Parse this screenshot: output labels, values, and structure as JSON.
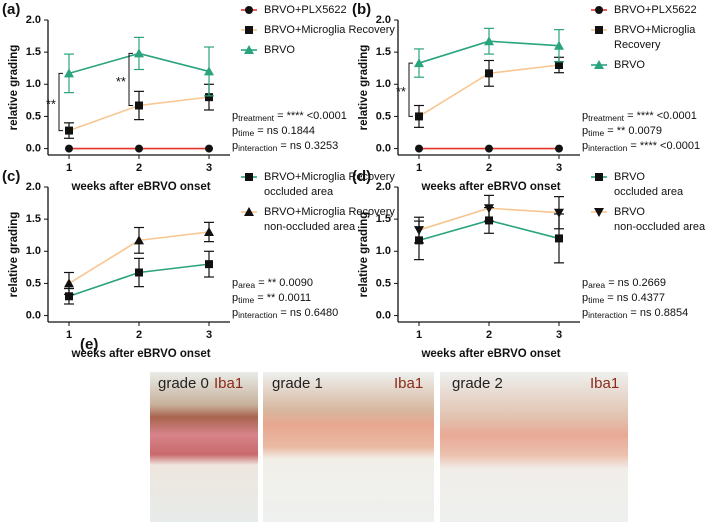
{
  "chart_data": [
    {
      "type": "line",
      "panel_label": "(a)",
      "ylabel": "relative grading",
      "xlabel": "weeks after eBRVO onset",
      "x": [
        1,
        2,
        3
      ],
      "xlim": [
        0.7,
        3.3
      ],
      "xticks": [
        1,
        2,
        3
      ],
      "ylim": [
        -0.1,
        2.0
      ],
      "yticks": [
        {
          "value": 0,
          "label": "0.0"
        },
        0.5,
        {
          "value": 1,
          "label": "1.0"
        },
        1.5,
        {
          "value": 2,
          "label": "2.0"
        }
      ],
      "series": [
        {
          "name": "BRVO+PLX5622",
          "color": "#e5352b",
          "marker": "circle",
          "marker_color": "#111111",
          "values": [
            0,
            0,
            0
          ],
          "errors": [
            0,
            0,
            0
          ]
        },
        {
          "name": "BRVO+Microglia Recovery",
          "color": "#f8c690",
          "marker": "square",
          "marker_color": "#111111",
          "values": [
            0.28,
            0.67,
            0.8
          ],
          "errors": [
            0.12,
            0.22,
            0.2
          ]
        },
        {
          "name": "BRVO",
          "color": "#2aa37f",
          "marker": "triangle-up",
          "marker_color": "#2aa37f",
          "values": [
            1.17,
            1.48,
            1.2
          ],
          "errors": [
            0.3,
            0.25,
            0.38
          ]
        }
      ],
      "significance": [
        {
          "x": 1,
          "label": "**"
        },
        {
          "x": 2,
          "label": "**"
        }
      ],
      "stats": [
        {
          "symbol": "p",
          "subscript": "treatment",
          "text": " = **** <0.0001"
        },
        {
          "symbol": "p",
          "subscript": "time",
          "text": " = ns 0.1844"
        },
        {
          "symbol": "p",
          "subscript": "interaction",
          "text": " = ns 0.3253"
        }
      ]
    },
    {
      "type": "line",
      "panel_label": "(b)",
      "ylabel": "relative grading",
      "xlabel": "weeks after eBRVO onset",
      "x": [
        1,
        2,
        3
      ],
      "xlim": [
        0.7,
        3.3
      ],
      "xticks": [
        1,
        2,
        3
      ],
      "ylim": [
        -0.1,
        2.0
      ],
      "yticks": [
        {
          "value": 0,
          "label": "0.0"
        },
        0.5,
        {
          "value": 1,
          "label": "1.0"
        },
        1.5,
        {
          "value": 2,
          "label": "2.0"
        }
      ],
      "series": [
        {
          "name": "BRVO+PLX5622",
          "color": "#e5352b",
          "marker": "circle",
          "marker_color": "#111111",
          "values": [
            0,
            0,
            0
          ],
          "errors": [
            0,
            0,
            0
          ]
        },
        {
          "name": "BRVO+Microglia Recovery",
          "color": "#f8c690",
          "marker": "square",
          "marker_color": "#111111",
          "values": [
            0.5,
            1.17,
            1.3
          ],
          "errors": [
            0.17,
            0.2,
            0.12
          ]
        },
        {
          "name": "BRVO",
          "color": "#2aa37f",
          "marker": "triangle-up",
          "marker_color": "#2aa37f",
          "values": [
            1.33,
            1.67,
            1.6
          ],
          "errors": [
            0.22,
            0.2,
            0.25
          ]
        }
      ],
      "significance": [
        {
          "x": 1,
          "label": "**"
        }
      ],
      "stats": [
        {
          "symbol": "p",
          "subscript": "treatment",
          "text": " = **** <0.0001"
        },
        {
          "symbol": "p",
          "subscript": "time",
          "text": " = ** 0.0079"
        },
        {
          "symbol": "p",
          "subscript": "interaction",
          "text": " = **** <0.0001"
        }
      ]
    },
    {
      "type": "line",
      "panel_label": "(c)",
      "ylabel": "relative grading",
      "xlabel": "weeks after eBRVO onset",
      "x": [
        1,
        2,
        3
      ],
      "xlim": [
        0.7,
        3.3
      ],
      "xticks": [
        1,
        2,
        3
      ],
      "ylim": [
        -0.1,
        2.0
      ],
      "yticks": [
        {
          "value": 0,
          "label": "0.0"
        },
        0.5,
        {
          "value": 1,
          "label": "1.0"
        },
        1.5,
        {
          "value": 2,
          "label": "2.0"
        }
      ],
      "series": [
        {
          "name": "BRVO+Microglia Recovery\noccluded area",
          "color": "#2aa37f",
          "marker": "square",
          "marker_color": "#111111",
          "values": [
            0.3,
            0.67,
            0.8
          ],
          "errors": [
            0.12,
            0.22,
            0.2
          ]
        },
        {
          "name": "BRVO+Microglia Recovery\nnon-occluded area",
          "color": "#f8c690",
          "marker": "triangle-up",
          "marker_color": "#111111",
          "values": [
            0.5,
            1.17,
            1.3
          ],
          "errors": [
            0.17,
            0.2,
            0.15
          ]
        }
      ],
      "stats": [
        {
          "symbol": "p",
          "subscript": "area",
          "text": " = ** 0.0090"
        },
        {
          "symbol": "p",
          "subscript": "time",
          "text": " = ** 0.0011"
        },
        {
          "symbol": "p",
          "subscript": "interaction",
          "text": " = ns 0.6480"
        }
      ]
    },
    {
      "type": "line",
      "panel_label": "(d)",
      "ylabel": "relative grading",
      "xlabel": "weeks after eBRVO onset",
      "x": [
        1,
        2,
        3
      ],
      "xlim": [
        0.7,
        3.3
      ],
      "xticks": [
        1,
        2,
        3
      ],
      "ylim": [
        -0.1,
        2.0
      ],
      "yticks": [
        {
          "value": 0,
          "label": "0.0"
        },
        0.5,
        {
          "value": 1,
          "label": "1.0"
        },
        1.5,
        {
          "value": 2,
          "label": "2.0"
        }
      ],
      "series": [
        {
          "name": "BRVO\noccluded area",
          "color": "#2aa37f",
          "marker": "square",
          "marker_color": "#111111",
          "values": [
            1.17,
            1.48,
            1.2
          ],
          "errors": [
            0.3,
            0.2,
            0.38
          ]
        },
        {
          "name": "BRVO\nnon-occluded area",
          "color": "#f8c690",
          "marker": "triangle-down",
          "marker_color": "#111111",
          "values": [
            1.33,
            1.67,
            1.6
          ],
          "errors": [
            0.2,
            0.2,
            0.25
          ]
        }
      ],
      "stats": [
        {
          "symbol": "p",
          "subscript": "area",
          "text": " = ns 0.2669"
        },
        {
          "symbol": "p",
          "subscript": "time",
          "text": " = ns 0.4377"
        },
        {
          "symbol": "p",
          "subscript": "interaction",
          "text": " = ns 0.8854"
        }
      ]
    }
  ],
  "panel_e": {
    "label": "(e)",
    "images": [
      {
        "grade": "grade 0",
        "stain": "Iba1"
      },
      {
        "grade": "grade 1",
        "stain": "Iba1"
      },
      {
        "grade": "grade 2",
        "stain": "Iba1"
      }
    ]
  }
}
